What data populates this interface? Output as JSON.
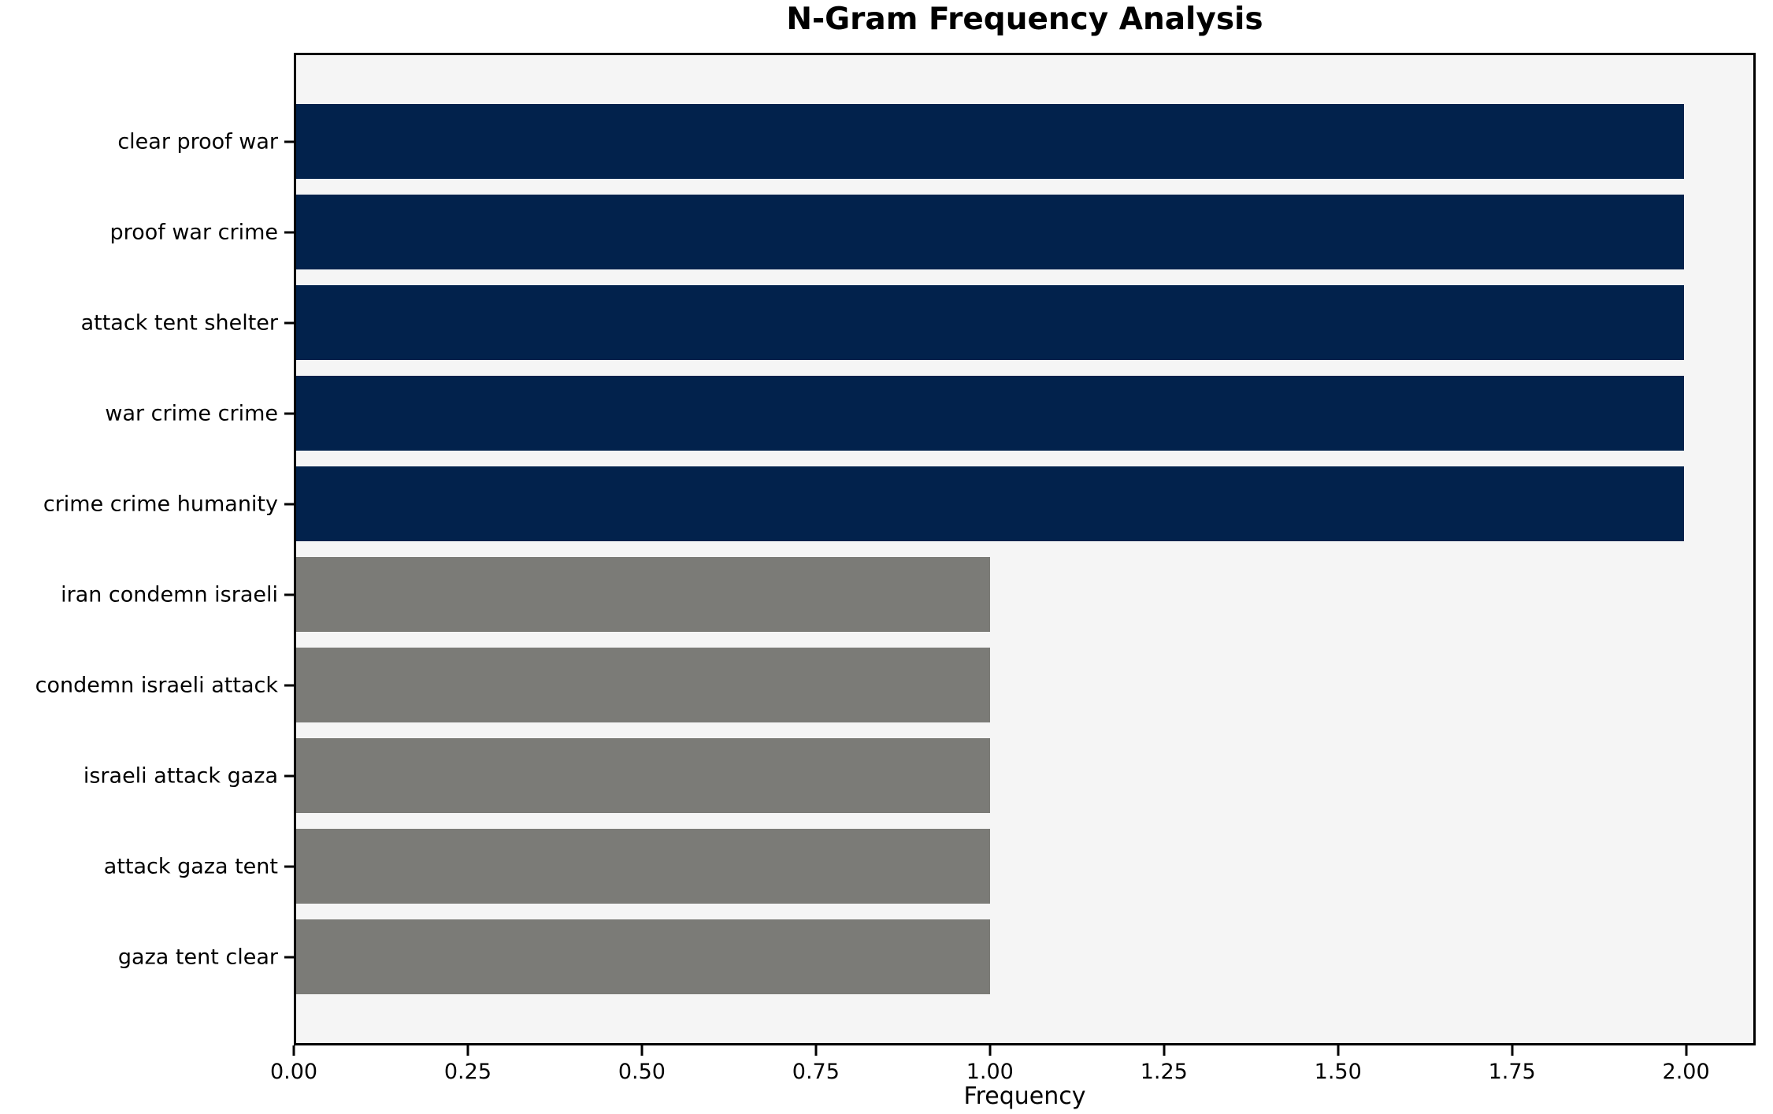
{
  "chart_data": {
    "type": "bar",
    "orientation": "horizontal",
    "title": "N-Gram Frequency Analysis",
    "xlabel": "Frequency",
    "categories": [
      "clear proof war",
      "proof war crime",
      "attack tent shelter",
      "war crime crime",
      "crime crime humanity",
      "iran condemn israeli",
      "condemn israeli attack",
      "israeli attack gaza",
      "attack gaza tent",
      "gaza tent clear"
    ],
    "values": [
      2,
      2,
      2,
      2,
      2,
      1,
      1,
      1,
      1,
      1
    ],
    "bar_colors": [
      "#02224c",
      "#02224c",
      "#02224c",
      "#02224c",
      "#02224c",
      "#7b7b77",
      "#7b7b77",
      "#7b7b77",
      "#7b7b77",
      "#7b7b77"
    ],
    "xlim": [
      0,
      2.1
    ],
    "x_ticks": [
      "0.00",
      "0.25",
      "0.50",
      "0.75",
      "1.00",
      "1.25",
      "1.50",
      "1.75",
      "2.00"
    ],
    "grid": false,
    "colors": {
      "navy": "#02224c",
      "gray": "#7b7b77",
      "plot_background": "#f5f5f5",
      "figure_background": "#ffffff",
      "frame": "#000000"
    }
  }
}
